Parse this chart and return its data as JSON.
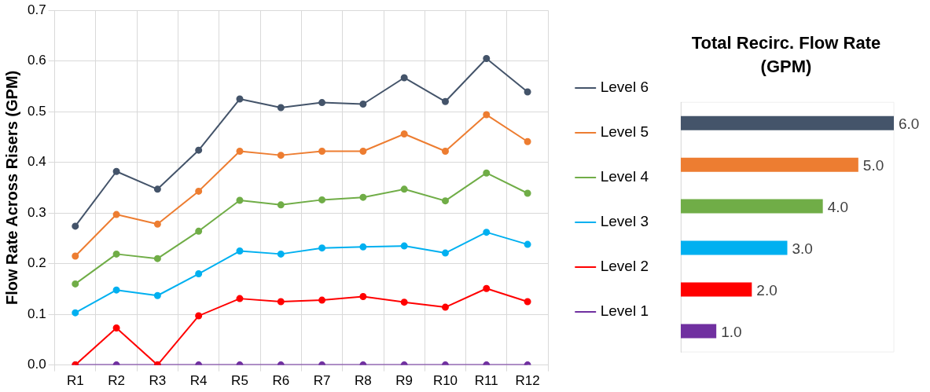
{
  "chart_data": [
    {
      "type": "line",
      "ylabel": "Flow Rate Across Risers (GPM)",
      "categories": [
        "R1",
        "R2",
        "R3",
        "R4",
        "R5",
        "R6",
        "R7",
        "R8",
        "R9",
        "R10",
        "R11",
        "R12"
      ],
      "series": [
        {
          "name": "Level 6",
          "color": "#44546a",
          "values": [
            0.274,
            0.382,
            0.347,
            0.424,
            0.525,
            0.508,
            0.518,
            0.515,
            0.567,
            0.52,
            0.605,
            0.539
          ]
        },
        {
          "name": "Level 5",
          "color": "#ed7d31",
          "values": [
            0.215,
            0.297,
            0.278,
            0.343,
            0.422,
            0.414,
            0.422,
            0.422,
            0.456,
            0.422,
            0.494,
            0.441
          ]
        },
        {
          "name": "Level 4",
          "color": "#70ad47",
          "values": [
            0.16,
            0.219,
            0.21,
            0.264,
            0.325,
            0.316,
            0.326,
            0.331,
            0.347,
            0.324,
            0.379,
            0.339
          ]
        },
        {
          "name": "Level 3",
          "color": "#00b0f0",
          "values": [
            0.103,
            0.148,
            0.137,
            0.18,
            0.225,
            0.219,
            0.231,
            0.233,
            0.235,
            0.221,
            0.262,
            0.238
          ]
        },
        {
          "name": "Level 2",
          "color": "#ff0000",
          "values": [
            0,
            0.073,
            0,
            0.097,
            0.131,
            0.125,
            0.128,
            0.135,
            0.124,
            0.114,
            0.151,
            0.125
          ]
        },
        {
          "name": "Level 1",
          "color": "#7030a0",
          "values": [
            0,
            0,
            0,
            0,
            0,
            0,
            0,
            0,
            0,
            0,
            0,
            0
          ]
        }
      ],
      "ylim": [
        0,
        0.7
      ],
      "yticks": [
        {
          "value": 0,
          "label": "0.0"
        },
        {
          "value": 0.1,
          "label": "0.1"
        },
        {
          "value": 0.2,
          "label": "0.2"
        },
        {
          "value": 0.3,
          "label": "0.3"
        },
        {
          "value": 0.4,
          "label": "0.4"
        },
        {
          "value": 0.5,
          "label": "0.5"
        },
        {
          "value": 0.6,
          "label": "0.6"
        },
        {
          "value": 0.7,
          "label": "0.7"
        }
      ],
      "grid": true,
      "legend": "right",
      "marker": "circle",
      "line_style": "solid"
    },
    {
      "type": "bar",
      "orientation": "horizontal",
      "title": "Total Recirc. Flow Rate (GPM)",
      "categories": [
        null,
        null,
        null,
        null,
        null,
        null
      ],
      "values": [
        6.0,
        5.0,
        4.0,
        3.0,
        2.0,
        1.0
      ],
      "colors": [
        "#44546a",
        "#ed7d31",
        "#70ad47",
        "#00b0f0",
        "#ff0000",
        "#7030a0"
      ],
      "value_labels": [
        "6.0",
        "5.0",
        "4.0",
        "3.0",
        "2.0",
        "1.0"
      ],
      "grid": false,
      "legend": false
    }
  ]
}
